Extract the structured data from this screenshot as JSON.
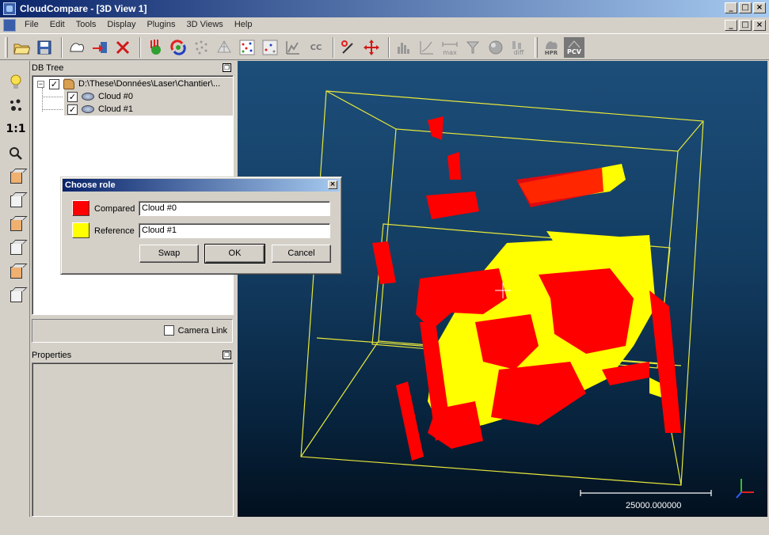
{
  "window": {
    "title": "CloudCompare - [3D View 1]",
    "controls": {
      "minimize": "_",
      "maximize": "□",
      "close": "×"
    }
  },
  "menu": {
    "items": [
      "File",
      "Edit",
      "Tools",
      "Display",
      "Plugins",
      "3D Views",
      "Help"
    ]
  },
  "toolbar": {
    "icons": [
      "open-icon",
      "save-icon",
      "clone-icon",
      "export-icon",
      "delete-icon",
      "normals-icon",
      "registration-icon",
      "subsample-icon",
      "mesh-icon",
      "noise-icon",
      "distance-icon",
      "statistics-icon",
      "connected-components-icon",
      "segment-icon",
      "translate-rotate-icon",
      "histogram-icon",
      "curvature-icon",
      "max-distance-icon",
      "filter-icon",
      "sphere-icon",
      "diff-icon",
      "hpr-icon",
      "pcv-icon"
    ],
    "labels": {
      "cc": "CC",
      "hpr": "HPR",
      "pcv": "PCV",
      "diff": "diff",
      "max": "max"
    }
  },
  "left_toolbar": {
    "icons": [
      "light-bulb-icon",
      "point-size-icon",
      "zoom-1to1-icon",
      "zoom-icon",
      "view-front-icon",
      "view-back-icon",
      "view-top-icon",
      "view-bottom-icon",
      "view-left-icon",
      "view-right-icon"
    ],
    "one_to_one_label": "1:1"
  },
  "db_tree": {
    "title": "DB Tree",
    "root": {
      "label": "D:\\These\\Données\\Laser\\Chantier\\...",
      "checked": true,
      "expander": "−"
    },
    "children": [
      {
        "label": "Cloud #0",
        "checked": true
      },
      {
        "label": "Cloud #1",
        "checked": true
      }
    ],
    "check_mark": "✓"
  },
  "camera_link": {
    "label": "Camera Link",
    "checked": false
  },
  "properties": {
    "title": "Properties"
  },
  "view3d": {
    "scale_label": "25000.000000",
    "colors": {
      "compared": "#ff0000",
      "reference": "#ffff00",
      "bbox": "#e8e83a"
    }
  },
  "dialog": {
    "title": "Choose role",
    "close": "×",
    "compared_label": "Compared",
    "compared_value": "Cloud #0",
    "compared_color": "#ff0000",
    "reference_label": "Reference",
    "reference_value": "Cloud #1",
    "reference_color": "#ffff00",
    "swap_label": "Swap",
    "ok_label": "OK",
    "cancel_label": "Cancel"
  }
}
